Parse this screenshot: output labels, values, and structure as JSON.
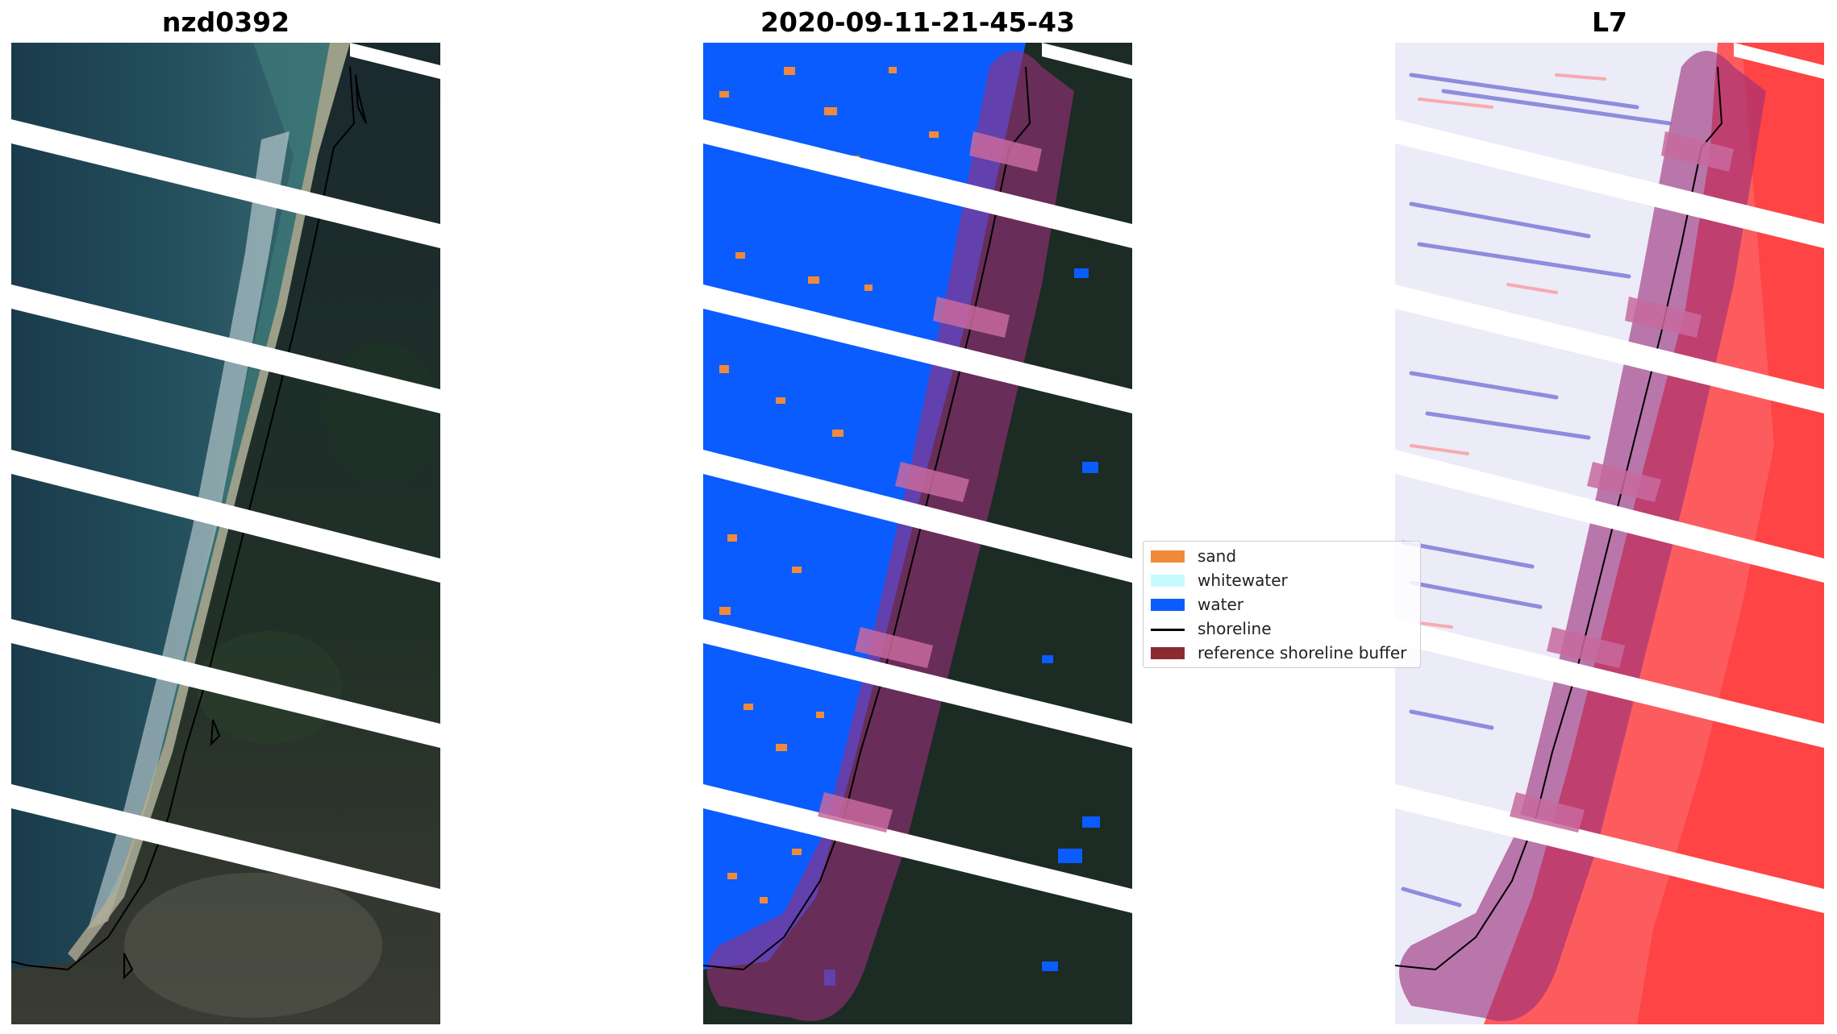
{
  "panels": [
    {
      "title": "nzd0392",
      "kind": "rgb-satellite-image"
    },
    {
      "title": "2020-09-11-21-45-43",
      "kind": "classified-image"
    },
    {
      "title": "L7",
      "kind": "mndwi-index-image"
    }
  ],
  "legend": {
    "items": [
      {
        "label": "sand",
        "color": "#f08a3a",
        "type": "patch"
      },
      {
        "label": "whitewater",
        "color": "#c8fbff",
        "type": "patch"
      },
      {
        "label": "water",
        "color": "#0a5cff",
        "type": "patch"
      },
      {
        "label": "shoreline",
        "color": "#000000",
        "type": "line"
      },
      {
        "label": "reference shoreline buffer",
        "color": "#8b2a2f",
        "type": "patch"
      }
    ]
  },
  "colors": {
    "water_class": "#0a5cff",
    "sand_class": "#f08a3a",
    "buffer_overlay": "#a0305a",
    "rgb_sea": "#1b3e4f",
    "rgb_land": "#1c2b22",
    "mndwi_positive": "#ff2a2a",
    "mndwi_negative": "#3a3acc"
  }
}
